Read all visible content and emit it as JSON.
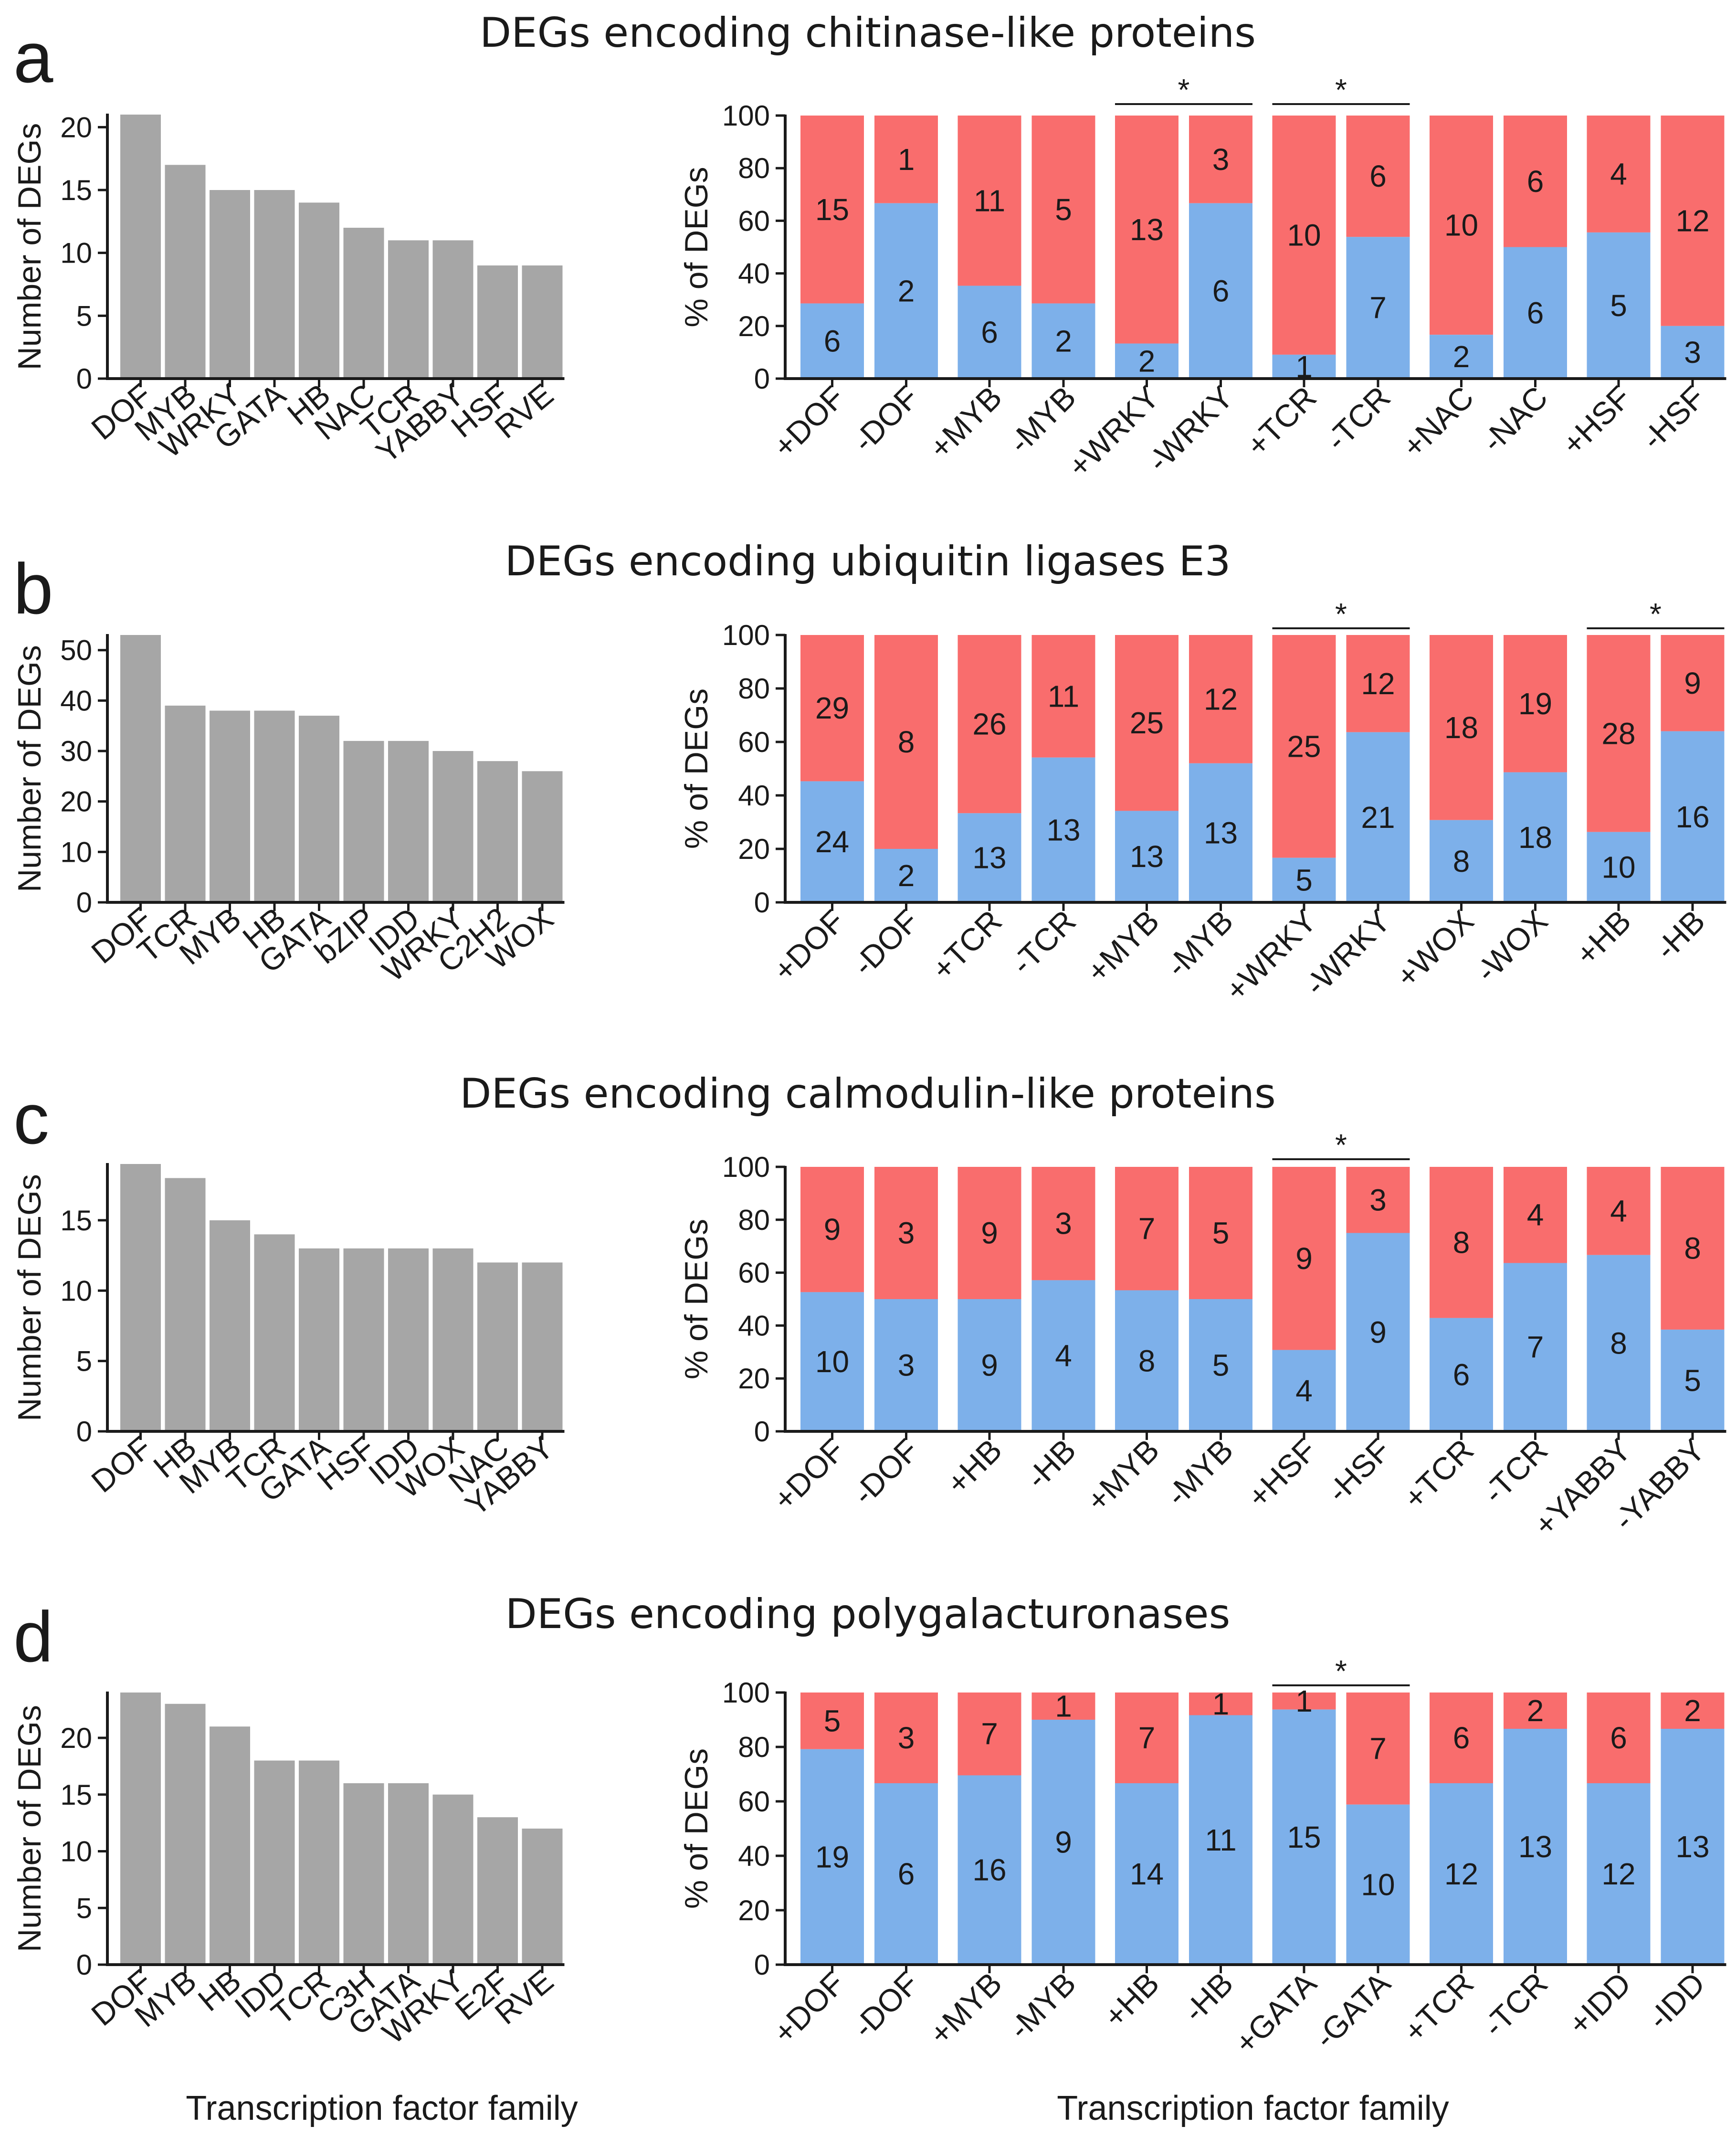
{
  "colors": {
    "count_bar": "#a6a6a6",
    "upregulated": "#7db0ea",
    "downregulated": "#f96d6d",
    "axis": "#1a1a1a"
  },
  "x_axis_title": "Transcription factor family",
  "chart_data": [
    {
      "panel": "a",
      "title": "DEGs encoding chitinase-like proteins",
      "count_chart": {
        "type": "bar",
        "ylabel": "Number of DEGs",
        "ylim": [
          0,
          21
        ],
        "yticks": [
          0,
          5,
          10,
          15,
          20
        ],
        "categories": [
          "DOF",
          "MYB",
          "WRKY",
          "GATA",
          "HB",
          "NAC",
          "TCR",
          "YABBY",
          "HSF",
          "RVE"
        ],
        "values": [
          21,
          17,
          15,
          15,
          14,
          12,
          11,
          11,
          9,
          9
        ]
      },
      "percent_chart": {
        "type": "bar",
        "stacked": true,
        "ylabel": "% of DEGs",
        "ylim": [
          0,
          100
        ],
        "yticks": [
          0,
          20,
          40,
          60,
          80,
          100
        ],
        "series_names": [
          "blue",
          "red"
        ],
        "groups": [
          {
            "bars": [
              {
                "label": "+DOF",
                "blue": 6,
                "red": 15
              },
              {
                "label": "-DOF",
                "blue": 2,
                "red": 1
              }
            ],
            "significance": ""
          },
          {
            "bars": [
              {
                "label": "+MYB",
                "blue": 6,
                "red": 11
              },
              {
                "label": "-MYB",
                "blue": 2,
                "red": 5
              }
            ],
            "significance": ""
          },
          {
            "bars": [
              {
                "label": "+WRKY",
                "blue": 2,
                "red": 13
              },
              {
                "label": "-WRKY",
                "blue": 6,
                "red": 3
              }
            ],
            "significance": "*"
          },
          {
            "bars": [
              {
                "label": "+TCR",
                "blue": 1,
                "red": 10
              },
              {
                "label": "-TCR",
                "blue": 7,
                "red": 6
              }
            ],
            "significance": "*"
          },
          {
            "bars": [
              {
                "label": "+NAC",
                "blue": 2,
                "red": 10
              },
              {
                "label": "-NAC",
                "blue": 6,
                "red": 6
              }
            ],
            "significance": ""
          },
          {
            "bars": [
              {
                "label": "+HSF",
                "blue": 5,
                "red": 4
              },
              {
                "label": "-HSF",
                "blue": 3,
                "red": 12
              }
            ],
            "significance": ""
          }
        ]
      }
    },
    {
      "panel": "b",
      "title": "DEGs encoding ubiquitin ligases E3",
      "count_chart": {
        "type": "bar",
        "ylabel": "Number of DEGs",
        "ylim": [
          0,
          53
        ],
        "yticks": [
          0,
          10,
          20,
          30,
          40,
          50
        ],
        "categories": [
          "DOF",
          "TCR",
          "MYB",
          "HB",
          "GATA",
          "bZIP",
          "IDD",
          "WRKY",
          "C2H2",
          "WOX"
        ],
        "values": [
          53,
          39,
          38,
          38,
          37,
          32,
          32,
          30,
          28,
          26
        ]
      },
      "percent_chart": {
        "type": "bar",
        "stacked": true,
        "ylabel": "% of DEGs",
        "ylim": [
          0,
          100
        ],
        "yticks": [
          0,
          20,
          40,
          60,
          80,
          100
        ],
        "series_names": [
          "blue",
          "red"
        ],
        "groups": [
          {
            "bars": [
              {
                "label": "+DOF",
                "blue": 24,
                "red": 29
              },
              {
                "label": "-DOF",
                "blue": 2,
                "red": 8
              }
            ],
            "significance": ""
          },
          {
            "bars": [
              {
                "label": "+TCR",
                "blue": 13,
                "red": 26
              },
              {
                "label": "-TCR",
                "blue": 13,
                "red": 11
              }
            ],
            "significance": ""
          },
          {
            "bars": [
              {
                "label": "+MYB",
                "blue": 13,
                "red": 25
              },
              {
                "label": "-MYB",
                "blue": 13,
                "red": 12
              }
            ],
            "significance": ""
          },
          {
            "bars": [
              {
                "label": "+WRKY",
                "blue": 5,
                "red": 25
              },
              {
                "label": "-WRKY",
                "blue": 21,
                "red": 12
              }
            ],
            "significance": "*"
          },
          {
            "bars": [
              {
                "label": "+WOX",
                "blue": 8,
                "red": 18
              },
              {
                "label": "-WOX",
                "blue": 18,
                "red": 19
              }
            ],
            "significance": ""
          },
          {
            "bars": [
              {
                "label": "+HB",
                "blue": 10,
                "red": 28
              },
              {
                "label": "-HB",
                "blue": 16,
                "red": 9
              }
            ],
            "significance": "*"
          }
        ]
      }
    },
    {
      "panel": "c",
      "title": "DEGs encoding calmodulin-like proteins",
      "count_chart": {
        "type": "bar",
        "ylabel": "Number of DEGs",
        "ylim": [
          0,
          19
        ],
        "yticks": [
          0,
          5,
          10,
          15
        ],
        "categories": [
          "DOF",
          "HB",
          "MYB",
          "TCR",
          "GATA",
          "HSF",
          "IDD",
          "WOX",
          "NAC",
          "YABBY"
        ],
        "values": [
          19,
          18,
          15,
          14,
          13,
          13,
          13,
          13,
          12,
          12
        ]
      },
      "percent_chart": {
        "type": "bar",
        "stacked": true,
        "ylabel": "% of DEGs",
        "ylim": [
          0,
          100
        ],
        "yticks": [
          0,
          20,
          40,
          60,
          80,
          100
        ],
        "series_names": [
          "blue",
          "red"
        ],
        "groups": [
          {
            "bars": [
              {
                "label": "+DOF",
                "blue": 10,
                "red": 9
              },
              {
                "label": "-DOF",
                "blue": 3,
                "red": 3
              }
            ],
            "significance": ""
          },
          {
            "bars": [
              {
                "label": "+HB",
                "blue": 9,
                "red": 9
              },
              {
                "label": "-HB",
                "blue": 4,
                "red": 3
              }
            ],
            "significance": ""
          },
          {
            "bars": [
              {
                "label": "+MYB",
                "blue": 8,
                "red": 7
              },
              {
                "label": "-MYB",
                "blue": 5,
                "red": 5
              }
            ],
            "significance": ""
          },
          {
            "bars": [
              {
                "label": "+HSF",
                "blue": 4,
                "red": 9
              },
              {
                "label": "-HSF",
                "blue": 9,
                "red": 3
              }
            ],
            "significance": "*"
          },
          {
            "bars": [
              {
                "label": "+TCR",
                "blue": 6,
                "red": 8
              },
              {
                "label": "-TCR",
                "blue": 7,
                "red": 4
              }
            ],
            "significance": ""
          },
          {
            "bars": [
              {
                "label": "+YABBY",
                "blue": 8,
                "red": 4
              },
              {
                "label": "-YABBY",
                "blue": 5,
                "red": 8
              }
            ],
            "significance": ""
          }
        ]
      }
    },
    {
      "panel": "d",
      "title": "DEGs encoding polygalacturonases",
      "count_chart": {
        "type": "bar",
        "ylabel": "Number of DEGs",
        "ylim": [
          0,
          24
        ],
        "yticks": [
          0,
          5,
          10,
          15,
          20
        ],
        "categories": [
          "DOF",
          "MYB",
          "HB",
          "IDD",
          "TCR",
          "C3H",
          "GATA",
          "WRKY",
          "E2F",
          "RVE"
        ],
        "values": [
          24,
          23,
          21,
          18,
          18,
          16,
          16,
          15,
          13,
          12
        ]
      },
      "percent_chart": {
        "type": "bar",
        "stacked": true,
        "ylabel": "% of DEGs",
        "ylim": [
          0,
          100
        ],
        "yticks": [
          0,
          20,
          40,
          60,
          80,
          100
        ],
        "series_names": [
          "blue",
          "red"
        ],
        "groups": [
          {
            "bars": [
              {
                "label": "+DOF",
                "blue": 19,
                "red": 5
              },
              {
                "label": "-DOF",
                "blue": 6,
                "red": 3
              }
            ],
            "significance": ""
          },
          {
            "bars": [
              {
                "label": "+MYB",
                "blue": 16,
                "red": 7
              },
              {
                "label": "-MYB",
                "blue": 9,
                "red": 1
              }
            ],
            "significance": ""
          },
          {
            "bars": [
              {
                "label": "+HB",
                "blue": 14,
                "red": 7
              },
              {
                "label": "-HB",
                "blue": 11,
                "red": 1
              }
            ],
            "significance": ""
          },
          {
            "bars": [
              {
                "label": "+GATA",
                "blue": 15,
                "red": 1
              },
              {
                "label": "-GATA",
                "blue": 10,
                "red": 7
              }
            ],
            "significance": "*"
          },
          {
            "bars": [
              {
                "label": "+TCR",
                "blue": 12,
                "red": 6
              },
              {
                "label": "-TCR",
                "blue": 13,
                "red": 2
              }
            ],
            "significance": ""
          },
          {
            "bars": [
              {
                "label": "+IDD",
                "blue": 12,
                "red": 6
              },
              {
                "label": "-IDD",
                "blue": 13,
                "red": 2
              }
            ],
            "significance": ""
          }
        ]
      }
    }
  ]
}
